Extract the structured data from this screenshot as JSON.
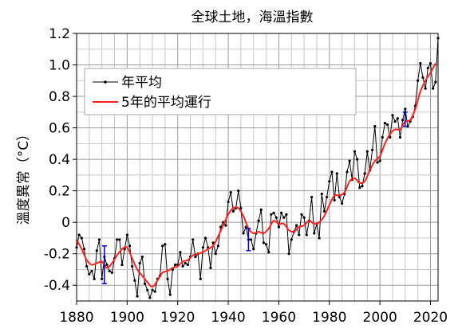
{
  "chart_data": {
    "type": "line",
    "title": "全球土地，海溫指數",
    "xlabel": "",
    "ylabel": "溫度異常（°C）",
    "xlim": [
      1880,
      2023
    ],
    "ylim": [
      -0.5,
      1.2
    ],
    "x_ticks": [
      1880,
      1900,
      1920,
      1940,
      1960,
      1980,
      2000,
      2020
    ],
    "y_ticks": [
      -0.4,
      -0.2,
      0,
      0.2,
      0.4,
      0.6,
      0.8,
      1.0,
      1.2
    ],
    "y_tick_labels": [
      "-0.4",
      "-0.2",
      "0",
      "0.2",
      "0.4",
      "0.6",
      "0.8",
      "1.0",
      "1.2"
    ],
    "grid": true,
    "legend_position": "top-left",
    "series": [
      {
        "name": "年平均",
        "color": "#000000",
        "marker": "dot",
        "x": [
          1880,
          1881,
          1882,
          1883,
          1884,
          1885,
          1886,
          1887,
          1888,
          1889,
          1890,
          1891,
          1892,
          1893,
          1894,
          1895,
          1896,
          1897,
          1898,
          1899,
          1900,
          1901,
          1902,
          1903,
          1904,
          1905,
          1906,
          1907,
          1908,
          1909,
          1910,
          1911,
          1912,
          1913,
          1914,
          1915,
          1916,
          1917,
          1918,
          1919,
          1920,
          1921,
          1922,
          1923,
          1924,
          1925,
          1926,
          1927,
          1928,
          1929,
          1930,
          1931,
          1932,
          1933,
          1934,
          1935,
          1936,
          1937,
          1938,
          1939,
          1940,
          1941,
          1942,
          1943,
          1944,
          1945,
          1946,
          1947,
          1948,
          1949,
          1950,
          1951,
          1952,
          1953,
          1954,
          1955,
          1956,
          1957,
          1958,
          1959,
          1960,
          1961,
          1962,
          1963,
          1964,
          1965,
          1966,
          1967,
          1968,
          1969,
          1970,
          1971,
          1972,
          1973,
          1974,
          1975,
          1976,
          1977,
          1978,
          1979,
          1980,
          1981,
          1982,
          1983,
          1984,
          1985,
          1986,
          1987,
          1988,
          1989,
          1990,
          1991,
          1992,
          1993,
          1994,
          1995,
          1996,
          1997,
          1998,
          1999,
          2000,
          2001,
          2002,
          2003,
          2004,
          2005,
          2006,
          2007,
          2008,
          2009,
          2010,
          2011,
          2012,
          2013,
          2014,
          2015,
          2016,
          2017,
          2018,
          2019,
          2020,
          2021,
          2022,
          2023
        ],
        "values": [
          -0.16,
          -0.08,
          -0.1,
          -0.17,
          -0.28,
          -0.33,
          -0.31,
          -0.36,
          -0.18,
          -0.11,
          -0.36,
          -0.22,
          -0.27,
          -0.31,
          -0.32,
          -0.23,
          -0.11,
          -0.11,
          -0.27,
          -0.17,
          -0.08,
          -0.15,
          -0.28,
          -0.37,
          -0.47,
          -0.26,
          -0.22,
          -0.39,
          -0.43,
          -0.48,
          -0.43,
          -0.44,
          -0.36,
          -0.34,
          -0.15,
          -0.14,
          -0.36,
          -0.46,
          -0.3,
          -0.27,
          -0.27,
          -0.19,
          -0.28,
          -0.26,
          -0.27,
          -0.22,
          -0.11,
          -0.22,
          -0.2,
          -0.36,
          -0.16,
          -0.1,
          -0.16,
          -0.29,
          -0.13,
          -0.2,
          -0.15,
          -0.03,
          -0.0,
          -0.02,
          0.13,
          0.19,
          0.07,
          0.09,
          0.2,
          0.09,
          -0.07,
          -0.03,
          -0.11,
          -0.11,
          -0.17,
          -0.07,
          0.01,
          0.08,
          -0.13,
          -0.14,
          -0.19,
          0.05,
          0.06,
          0.03,
          -0.03,
          0.06,
          0.03,
          0.05,
          -0.2,
          -0.11,
          -0.06,
          -0.02,
          -0.08,
          0.05,
          0.03,
          -0.08,
          0.01,
          0.16,
          -0.07,
          -0.01,
          -0.1,
          0.18,
          0.07,
          0.16,
          0.26,
          0.32,
          0.14,
          0.31,
          0.16,
          0.12,
          0.18,
          0.32,
          0.39,
          0.27,
          0.45,
          0.4,
          0.22,
          0.23,
          0.31,
          0.45,
          0.33,
          0.46,
          0.61,
          0.38,
          0.39,
          0.54,
          0.63,
          0.62,
          0.54,
          0.68,
          0.64,
          0.66,
          0.54,
          0.65,
          0.72,
          0.61,
          0.64,
          0.67,
          0.74,
          0.9,
          1.01,
          0.92,
          0.85,
          0.98,
          1.01,
          0.85,
          0.89,
          1.17
        ]
      },
      {
        "name": "5年的平均運行",
        "color": "#ff2020",
        "marker": "none",
        "x": [
          1880,
          1882,
          1884,
          1886,
          1888,
          1890,
          1892,
          1894,
          1896,
          1898,
          1900,
          1902,
          1904,
          1906,
          1908,
          1910,
          1912,
          1914,
          1916,
          1918,
          1920,
          1922,
          1924,
          1926,
          1928,
          1930,
          1932,
          1934,
          1936,
          1938,
          1940,
          1942,
          1944,
          1946,
          1948,
          1950,
          1952,
          1954,
          1956,
          1958,
          1960,
          1962,
          1964,
          1966,
          1968,
          1970,
          1972,
          1974,
          1976,
          1978,
          1980,
          1982,
          1984,
          1986,
          1988,
          1990,
          1992,
          1994,
          1996,
          1998,
          2000,
          2002,
          2004,
          2006,
          2008,
          2010,
          2012,
          2014,
          2016,
          2018,
          2020,
          2022
        ],
        "values": [
          -0.11,
          -0.17,
          -0.24,
          -0.27,
          -0.26,
          -0.25,
          -0.29,
          -0.26,
          -0.21,
          -0.17,
          -0.16,
          -0.23,
          -0.3,
          -0.34,
          -0.38,
          -0.41,
          -0.37,
          -0.32,
          -0.31,
          -0.29,
          -0.28,
          -0.25,
          -0.24,
          -0.21,
          -0.2,
          -0.19,
          -0.17,
          -0.15,
          -0.09,
          -0.02,
          0.05,
          0.09,
          0.09,
          0.04,
          -0.04,
          -0.07,
          -0.06,
          -0.07,
          -0.04,
          0.01,
          -0.01,
          -0.01,
          -0.05,
          -0.06,
          -0.03,
          -0.02,
          0.01,
          -0.01,
          0.0,
          0.04,
          0.11,
          0.17,
          0.17,
          0.19,
          0.26,
          0.28,
          0.25,
          0.26,
          0.33,
          0.39,
          0.42,
          0.5,
          0.56,
          0.59,
          0.59,
          0.64,
          0.65,
          0.72,
          0.83,
          0.9,
          0.95,
          1.01
        ]
      }
    ],
    "error_bars": [
      {
        "x": 1891,
        "y": -0.26,
        "low": -0.39,
        "high": -0.15,
        "color": "#0000cc"
      },
      {
        "x": 1948,
        "y": -0.11,
        "low": -0.18,
        "high": -0.04,
        "color": "#0000cc"
      },
      {
        "x": 2010,
        "y": 0.65,
        "low": 0.61,
        "high": 0.7,
        "color": "#0000cc"
      }
    ]
  }
}
